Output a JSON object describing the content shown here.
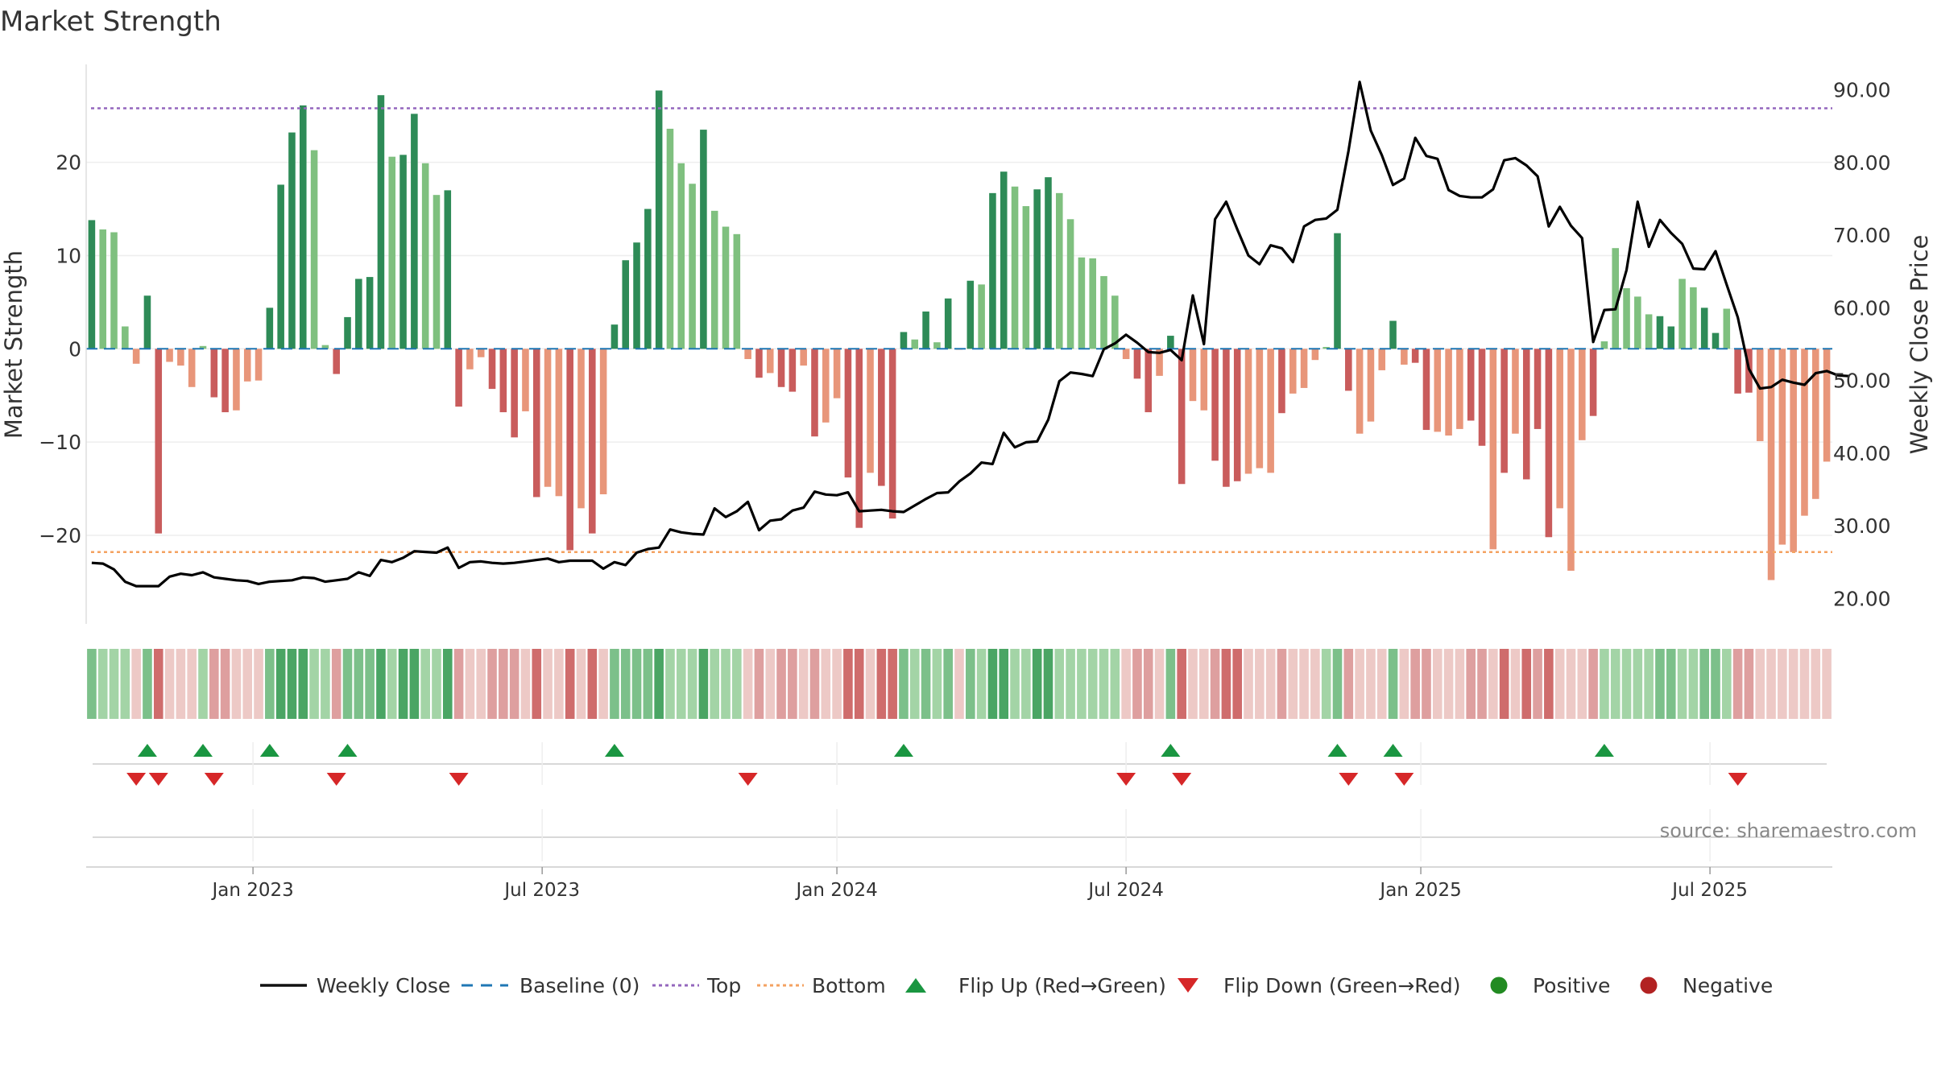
{
  "chart_data": {
    "title": "Market Strength",
    "type": "bar",
    "source_note": "source: sharemaestro.com",
    "colors": {
      "pos_dark": "#2e8b57",
      "pos_light": "#7fc07f",
      "neg_dark": "#c95c5c",
      "neg_light": "#e8967a",
      "price_line": "#000000",
      "baseline": "#1f77b4",
      "top": "#9467bd",
      "bottom": "#f4a261",
      "flip_up": "#1a9641",
      "flip_down": "#d62728",
      "positive_marker": "#228b22",
      "negative_marker": "#b22222"
    },
    "axes": {
      "left_label": "Market Strength",
      "right_label": "Weekly Close Price",
      "left_range": [
        -29.5,
        30.5
      ],
      "right_range": [
        16.5,
        93.5
      ],
      "left_ticks": [
        20,
        10,
        0,
        -10,
        -20
      ],
      "left_tick_labels": [
        "20",
        "10",
        "0",
        "−10",
        "−20"
      ],
      "right_ticks": [
        90,
        80,
        70,
        60,
        50,
        40,
        30,
        20
      ],
      "right_tick_labels": [
        "90.00",
        "80.00",
        "70.00",
        "60.00",
        "50.00",
        "40.00",
        "30.00",
        "20.00"
      ],
      "x_tick_labels": [
        "Jan 2023",
        "Jul 2023",
        "Jan 2024",
        "Jul 2024",
        "Jan 2025",
        "Jul 2025"
      ],
      "x_tick_weeks": [
        15,
        41,
        67.5,
        93.5,
        120,
        146
      ],
      "grid": true
    },
    "top_level": 25.8,
    "bottom_level": -21.8,
    "strength": [
      13.8,
      12.8,
      12.5,
      2.4,
      -1.6,
      5.7,
      -19.8,
      -1.4,
      -1.8,
      -4.1,
      0.3,
      -5.2,
      -6.8,
      -6.6,
      -3.5,
      -3.4,
      4.4,
      17.6,
      23.2,
      26.1,
      21.3,
      0.4,
      -2.7,
      3.4,
      7.5,
      7.7,
      27.2,
      20.6,
      20.8,
      25.2,
      19.9,
      16.5,
      17.0,
      -6.2,
      -2.2,
      -0.9,
      -4.3,
      -6.8,
      -9.5,
      -6.7,
      -15.9,
      -14.8,
      -15.8,
      -21.6,
      -17.1,
      -19.8,
      -15.6,
      2.6,
      9.5,
      11.4,
      15.0,
      27.7,
      23.6,
      19.9,
      17.7,
      23.5,
      14.8,
      13.1,
      12.3,
      -1.1,
      -3.1,
      -2.6,
      -4.1,
      -4.6,
      -1.8,
      -9.4,
      -7.9,
      -5.3,
      -13.8,
      -19.2,
      -13.3,
      -14.7,
      -18.2,
      1.8,
      1.0,
      4.0,
      0.7,
      5.4,
      -0.1,
      7.3,
      6.9,
      16.7,
      19.0,
      17.4,
      15.3,
      17.1,
      18.4,
      16.7,
      13.9,
      9.8,
      9.7,
      7.8,
      5.7,
      -1.1,
      -3.2,
      -6.8,
      -2.9,
      1.4,
      -14.5,
      -5.6,
      -6.6,
      -12.0,
      -14.8,
      -14.2,
      -13.4,
      -12.8,
      -13.3,
      -6.9,
      -4.8,
      -4.2,
      -1.2,
      0.2,
      12.4,
      -4.5,
      -9.1,
      -7.8,
      -2.3,
      3.0,
      -1.7,
      -1.5,
      -8.7,
      -8.9,
      -9.3,
      -8.6,
      -7.7,
      -10.4,
      -21.5,
      -13.3,
      -9.1,
      -14.0,
      -8.6,
      -20.2,
      -17.1,
      -23.8,
      -9.8,
      -7.2,
      0.8,
      10.8,
      6.5,
      5.6,
      3.7,
      3.5,
      2.4,
      7.5,
      6.6,
      4.4,
      1.7,
      4.3,
      -4.8,
      -4.7,
      -9.9,
      -24.8,
      -21.0,
      -21.8,
      -17.9,
      -16.1,
      -12.1
    ],
    "shade": [
      2,
      1,
      1,
      1,
      0,
      2,
      2,
      1,
      0,
      0,
      1,
      2,
      2,
      1,
      1,
      1,
      2,
      2,
      2,
      2,
      1,
      1,
      2,
      2,
      2,
      2,
      2,
      1,
      2,
      2,
      1,
      1,
      2,
      2,
      1,
      1,
      2,
      2,
      2,
      1,
      2,
      1,
      1,
      2,
      1,
      2,
      1,
      2,
      2,
      2,
      2,
      2,
      1,
      1,
      1,
      2,
      1,
      1,
      1,
      0,
      2,
      1,
      2,
      2,
      1,
      2,
      1,
      1,
      2,
      2,
      1,
      2,
      2,
      2,
      1,
      2,
      1,
      2,
      1,
      2,
      1,
      2,
      2,
      1,
      1,
      2,
      2,
      1,
      1,
      1,
      1,
      1,
      1,
      0,
      2,
      2,
      1,
      2,
      2,
      1,
      1,
      2,
      2,
      2,
      1,
      1,
      1,
      2,
      1,
      1,
      1,
      1,
      2,
      2,
      1,
      1,
      1,
      2,
      1,
      2,
      2,
      1,
      1,
      1,
      2,
      2,
      1,
      2,
      1,
      2,
      2,
      2,
      1,
      1,
      1,
      2,
      1,
      1,
      1,
      1,
      1,
      2,
      2,
      1,
      1,
      2,
      2,
      1,
      2,
      2,
      1,
      1,
      1,
      1,
      1
    ],
    "price": [
      24.9,
      24.8,
      24.0,
      22.3,
      21.7,
      21.7,
      21.7,
      23.0,
      23.4,
      23.2,
      23.6,
      22.9,
      22.7,
      22.5,
      22.4,
      22.0,
      22.3,
      22.4,
      22.5,
      22.9,
      22.8,
      22.3,
      22.5,
      22.7,
      23.6,
      23.1,
      25.3,
      25.0,
      25.6,
      26.5,
      26.4,
      26.3,
      27.0,
      24.2,
      25.0,
      25.1,
      24.9,
      24.8,
      24.9,
      25.1,
      25.3,
      25.5,
      25.0,
      25.2,
      25.2,
      25.2,
      24.1,
      25.0,
      24.6,
      26.3,
      26.8,
      27.0,
      29.5,
      29.1,
      28.9,
      28.8,
      32.4,
      31.2,
      32.0,
      33.3,
      29.4,
      30.7,
      30.9,
      32.1,
      32.5,
      34.7,
      34.3,
      34.2,
      34.6,
      32.0,
      32.1,
      32.2,
      32.0,
      31.9,
      32.8,
      33.7,
      34.5,
      34.6,
      36.1,
      37.2,
      38.7,
      38.5,
      42.8,
      40.8,
      41.5,
      41.6,
      44.6,
      49.9,
      51.1,
      50.9,
      50.6,
      54.3,
      55.1,
      56.3,
      55.2,
      53.9,
      53.8,
      54.2,
      52.8,
      61.7,
      55.0,
      72.2,
      74.6,
      70.8,
      67.2,
      66.0,
      68.6,
      68.2,
      66.3,
      71.2,
      72.1,
      72.3,
      73.5,
      81.6,
      91.1,
      84.4,
      81.0,
      76.9,
      77.8,
      83.4,
      80.9,
      80.5,
      76.2,
      75.4,
      75.2,
      75.2,
      76.3,
      80.3,
      80.6,
      79.6,
      78.1,
      71.2,
      73.9,
      71.3,
      69.6,
      55.3,
      59.7,
      59.8,
      65.2,
      74.6,
      68.4,
      72.1,
      70.3,
      68.8,
      65.4,
      65.3,
      67.8,
      63.2,
      58.7,
      51.6,
      48.9,
      49.1,
      50.1,
      49.7,
      49.4,
      51.0,
      51.3,
      50.7,
      50.6
    ],
    "flip_up": [
      5,
      10,
      16,
      23,
      47,
      73,
      97,
      112,
      117,
      136
    ],
    "flip_down": [
      4,
      6,
      11,
      22,
      33,
      59,
      93,
      98,
      113,
      118,
      148
    ],
    "legend": [
      {
        "label": "Weekly Close",
        "kind": "line",
        "color": "#111111"
      },
      {
        "label": "Baseline (0)",
        "kind": "dash",
        "color": "#1f77b4"
      },
      {
        "label": "Top",
        "kind": "dot",
        "color": "#9467bd"
      },
      {
        "label": "Bottom",
        "kind": "dot",
        "color": "#f4a261"
      },
      {
        "label": "Flip Up (Red→Green)",
        "kind": "tri-up",
        "color": "#1a9641"
      },
      {
        "label": "Flip Down (Green→Red)",
        "kind": "tri-down",
        "color": "#d62728"
      },
      {
        "label": "Positive",
        "kind": "circle",
        "color": "#228b22"
      },
      {
        "label": "Negative",
        "kind": "circle",
        "color": "#b22222"
      }
    ]
  }
}
